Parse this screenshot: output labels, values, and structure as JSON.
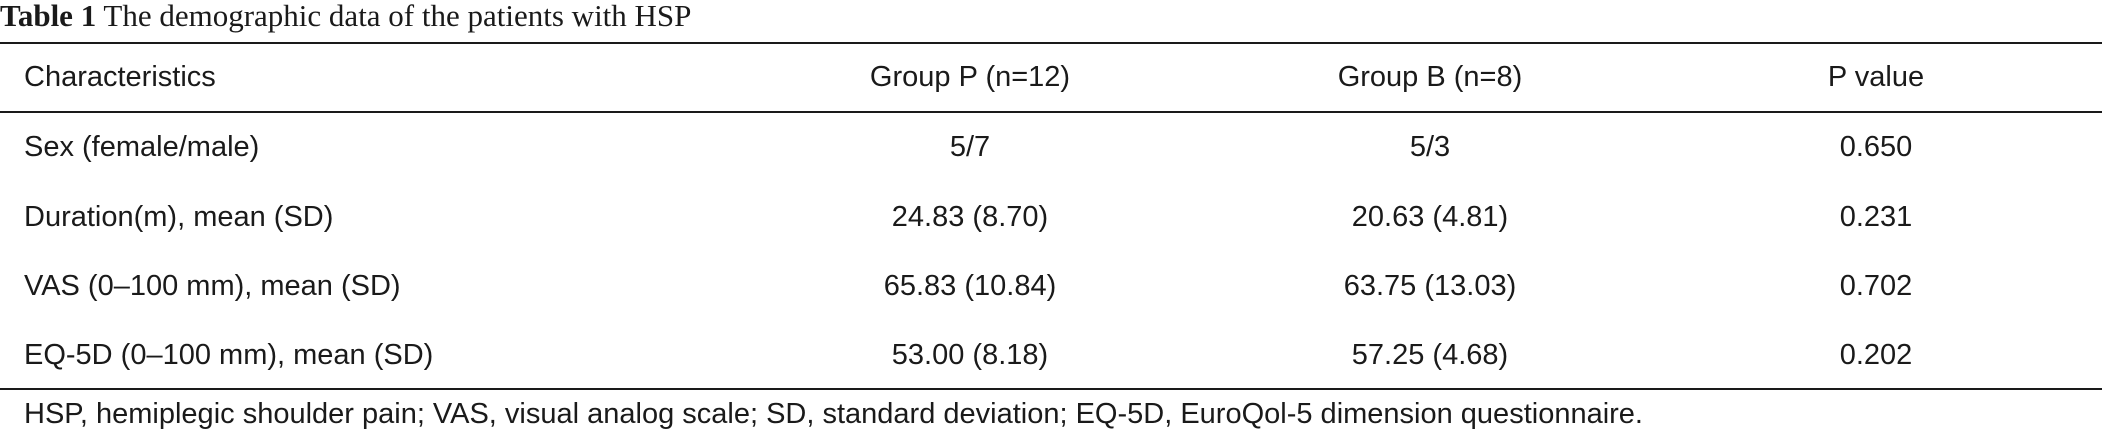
{
  "caption": {
    "label": "Table 1",
    "text": "The demographic data of the patients with HSP"
  },
  "table": {
    "headers": [
      "Characteristics",
      "Group P (n=12)",
      "Group B (n=8)",
      "P value"
    ],
    "rows": [
      [
        "Sex (female/male)",
        "5/7",
        "5/3",
        "0.650"
      ],
      [
        "Duration(m), mean (SD)",
        "24.83 (8.70)",
        "20.63 (4.81)",
        "0.231"
      ],
      [
        "VAS (0–100 mm), mean (SD)",
        "65.83 (10.84)",
        "63.75 (13.03)",
        "0.702"
      ],
      [
        "EQ-5D (0–100 mm), mean (SD)",
        "53.00 (8.18)",
        "57.25 (4.68)",
        "0.202"
      ]
    ]
  },
  "footnote": "HSP, hemiplegic shoulder pain; VAS, visual analog scale; SD, standard deviation; EQ-5D, EuroQol-5 dimension questionnaire."
}
